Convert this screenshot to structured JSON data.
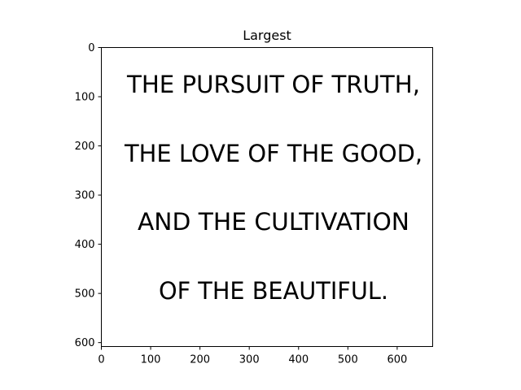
{
  "figure": {
    "title": "Largest",
    "x_axis": {
      "ticks": [
        0,
        100,
        200,
        300,
        400,
        500,
        600
      ],
      "range": [
        0,
        672
      ]
    },
    "y_axis": {
      "ticks": [
        0,
        100,
        200,
        300,
        400,
        500,
        600
      ],
      "range": [
        0,
        608
      ],
      "inverted": true
    },
    "grid": false
  },
  "image_content": {
    "lines": [
      "THE PURSUIT OF TRUTH,",
      "THE LOVE OF THE GOOD,",
      "AND THE CULTIVATION",
      "OF THE BEAUTIFUL."
    ],
    "text_color": "#000000",
    "background_color": "#ffffff"
  }
}
